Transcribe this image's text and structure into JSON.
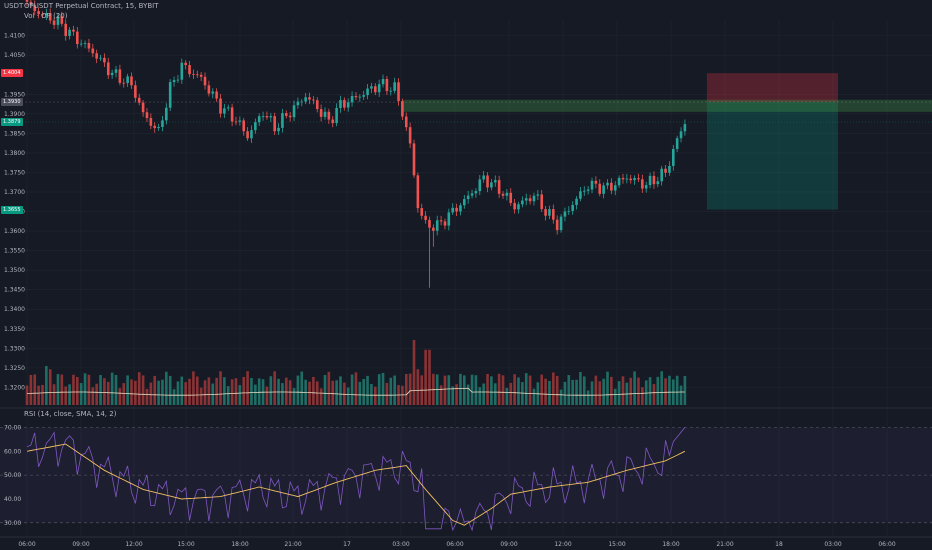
{
  "header": {
    "currency": "USDT",
    "symbol_line": "OPUSDT Perpetual Contract, 15, BYBIT",
    "volume_line": "Vol · OP (20)",
    "rsi_line": "RSI (14, close, SMA, 14, 2)"
  },
  "price_tags": [
    {
      "label": "1.4004",
      "value": 1.4004,
      "color": "#f23645"
    },
    {
      "label": "1.3930",
      "value": 1.393,
      "color": "#4a4e5a"
    },
    {
      "label": "1.3879",
      "value": 1.3879,
      "color": "#089981"
    },
    {
      "label": "1.3655",
      "value": 1.3655,
      "color": "#089981"
    }
  ],
  "colors": {
    "up": "#26a69a",
    "down": "#ef5350",
    "vol_up": "#1e6e66",
    "vol_down": "#8a3234",
    "vol_ma": "#e8dcc0",
    "rsi": "#7e57c2",
    "rsi_ma": "#f0c060",
    "grid": "#222631",
    "text": "#b2b5be"
  },
  "chart_data": [
    {
      "type": "candlestick",
      "title": "OPUSDT Perpetual Contract, 15, BYBIT",
      "interval": "15",
      "ylim": [
        1.3155,
        1.414
      ],
      "yticks": [
        1.41,
        1.405,
        1.395,
        1.39,
        1.385,
        1.38,
        1.375,
        1.37,
        1.365,
        1.36,
        1.355,
        1.35,
        1.345,
        1.34,
        1.335,
        1.33,
        1.325,
        1.32
      ],
      "xticks": [
        "06:00",
        "09:00",
        "12:00",
        "15:00",
        "18:00",
        "21:00",
        "17",
        "03:00",
        "06:00",
        "09:00",
        "12:00",
        "15:00",
        "18:00",
        "21:00",
        "18",
        "03:00",
        "06:00"
      ],
      "anchors": [
        [
          0,
          1.418
        ],
        [
          4,
          1.4152
        ],
        [
          8,
          1.4135
        ],
        [
          13,
          1.409
        ],
        [
          17,
          1.4058
        ],
        [
          22,
          1.4003
        ],
        [
          27,
          1.3975
        ],
        [
          30,
          1.39
        ],
        [
          34,
          1.3853
        ],
        [
          37,
          1.3965
        ],
        [
          40,
          1.4023
        ],
        [
          45,
          1.399
        ],
        [
          50,
          1.3918
        ],
        [
          54,
          1.3885
        ],
        [
          57,
          1.3843
        ],
        [
          61,
          1.3905
        ],
        [
          64,
          1.3865
        ],
        [
          68,
          1.3905
        ],
        [
          72,
          1.3946
        ],
        [
          75,
          1.3916
        ],
        [
          78,
          1.388
        ],
        [
          81,
          1.3923
        ],
        [
          86,
          1.3947
        ],
        [
          91,
          1.3975
        ],
        [
          95,
          1.3965
        ],
        [
          97,
          1.3903
        ],
        [
          99,
          1.382
        ],
        [
          101,
          1.3665
        ],
        [
          103,
          1.3616
        ],
        [
          106,
          1.3612
        ],
        [
          110,
          1.365
        ],
        [
          114,
          1.3687
        ],
        [
          118,
          1.3735
        ],
        [
          122,
          1.3708
        ],
        [
          126,
          1.3662
        ],
        [
          131,
          1.3692
        ],
        [
          134,
          1.3651
        ],
        [
          137,
          1.3617
        ],
        [
          141,
          1.367
        ],
        [
          145,
          1.3718
        ],
        [
          150,
          1.371
        ],
        [
          155,
          1.3738
        ],
        [
          160,
          1.3718
        ],
        [
          165,
          1.375
        ],
        [
          168,
          1.3833
        ],
        [
          170,
          1.3879
        ]
      ],
      "volume_ma_level": 0.35,
      "rsi": {
        "name": "RSI (14, close, SMA, 14, 2)",
        "ylim": [
          27,
          71
        ],
        "levels": [
          70,
          50,
          30
        ],
        "yticks": [
          "70.00",
          "60.00",
          "50.00",
          "40.00",
          "30.00"
        ],
        "ma_anchors": [
          [
            0,
            60
          ],
          [
            10,
            63
          ],
          [
            20,
            52
          ],
          [
            30,
            44
          ],
          [
            40,
            40
          ],
          [
            50,
            41
          ],
          [
            60,
            45
          ],
          [
            70,
            41
          ],
          [
            80,
            47
          ],
          [
            90,
            52
          ],
          [
            98,
            54
          ],
          [
            103,
            44
          ],
          [
            110,
            31
          ],
          [
            113,
            29
          ],
          [
            120,
            36
          ],
          [
            125,
            42
          ],
          [
            135,
            45
          ],
          [
            145,
            47
          ],
          [
            155,
            52
          ],
          [
            165,
            56
          ],
          [
            170,
            60
          ]
        ]
      },
      "position": {
        "entry": 1.393,
        "stop": 1.4004,
        "target": 1.3655
      }
    }
  ]
}
